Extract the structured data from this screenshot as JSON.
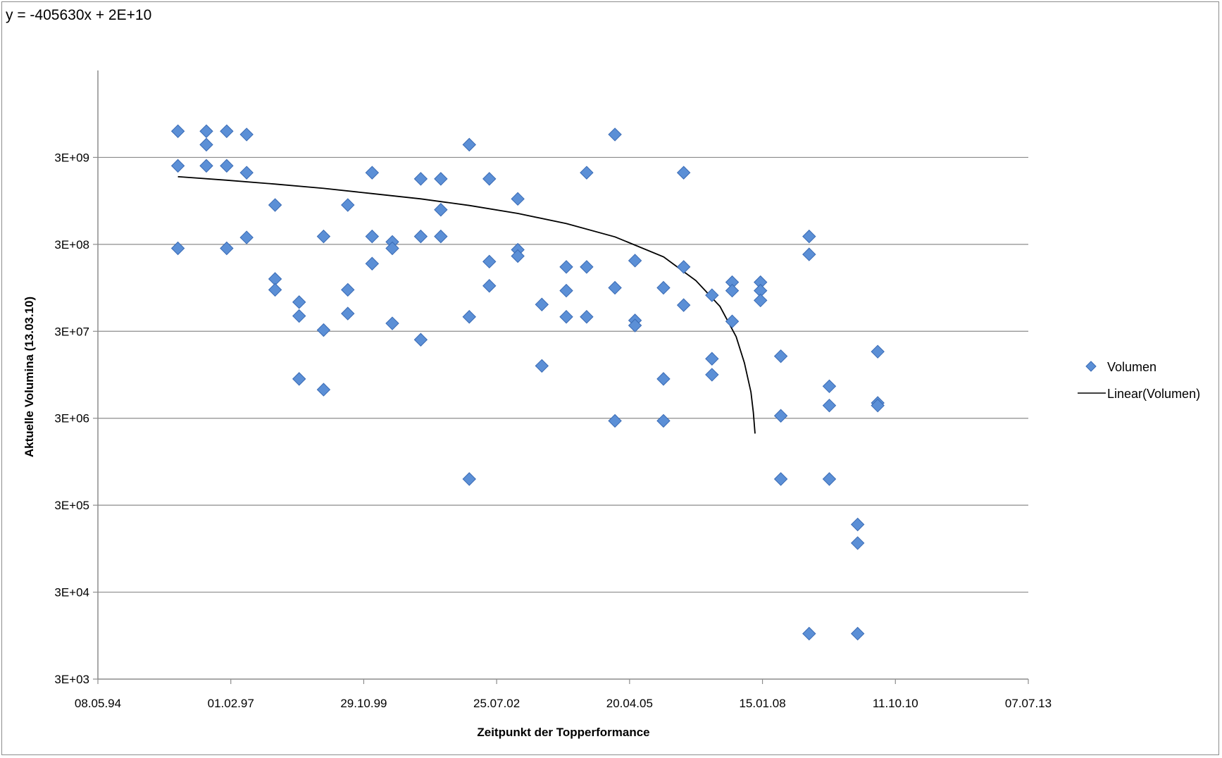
{
  "chart_data": {
    "type": "scatter",
    "title": "",
    "xlabel": "Zeitpunkt der Topperformance",
    "ylabel": "Aktuelle Volumina (13.03.10)",
    "y_scale": "log",
    "ylim": [
      3000,
      30000000000
    ],
    "xlim": [
      "1994-05-08",
      "2013-07-07"
    ],
    "x_ticks": [
      "08.05.94",
      "01.02.97",
      "29.10.99",
      "25.07.02",
      "20.04.05",
      "15.01.08",
      "11.10.10",
      "07.07.13"
    ],
    "y_ticks": [
      "3E+03",
      "3E+04",
      "3E+05",
      "3E+06",
      "3E+07",
      "3E+08",
      "3E+09"
    ],
    "grid": "horizontal major gridlines",
    "legend_position": "right",
    "annotations": [
      "y = -405630x + 2E+10"
    ],
    "colors": {
      "marker": "#5b8fd6",
      "marker_edge": "#3a6bb5",
      "trendline": "#000000",
      "grid": "#8c8c8c"
    },
    "series": [
      {
        "name": "Volumen",
        "marker": "diamond",
        "points": [
          [
            "1995-12-31",
            6000000000
          ],
          [
            "1995-12-31",
            2400000000
          ],
          [
            "1995-12-31",
            270000000
          ],
          [
            "1996-08-01",
            6000000000
          ],
          [
            "1996-08-01",
            4200000000
          ],
          [
            "1996-08-01",
            2400000000
          ],
          [
            "1997-01-01",
            6000000000
          ],
          [
            "1997-01-01",
            2400000000
          ],
          [
            "1997-01-01",
            270000000
          ],
          [
            "1997-05-31",
            5500000000
          ],
          [
            "1997-05-31",
            2000000000
          ],
          [
            "1997-05-31",
            360000000
          ],
          [
            "1997-12-31",
            850000000
          ],
          [
            "1997-12-31",
            120000000
          ],
          [
            "1997-12-31",
            90000000
          ],
          [
            "1998-06-30",
            65000000
          ],
          [
            "1998-06-30",
            45000000
          ],
          [
            "1998-06-30",
            8500000
          ],
          [
            "1998-12-31",
            370000000
          ],
          [
            "1998-12-31",
            31000000
          ],
          [
            "1998-12-31",
            6400000
          ],
          [
            "1999-07-01",
            850000000
          ],
          [
            "1999-07-01",
            90000000
          ],
          [
            "1999-07-01",
            48000000
          ],
          [
            "1999-12-31",
            2000000000
          ],
          [
            "1999-12-31",
            370000000
          ],
          [
            "1999-12-31",
            180000000
          ],
          [
            "2000-05-31",
            320000000
          ],
          [
            "2000-05-31",
            270000000
          ],
          [
            "2000-05-31",
            37000000
          ],
          [
            "2000-12-31",
            1700000000
          ],
          [
            "2000-12-31",
            370000000
          ],
          [
            "2000-12-31",
            24000000
          ],
          [
            "2001-05-31",
            1700000000
          ],
          [
            "2001-05-31",
            750000000
          ],
          [
            "2001-05-31",
            370000000
          ],
          [
            "2001-12-31",
            4200000000
          ],
          [
            "2001-12-31",
            44000000
          ],
          [
            "2001-12-31",
            600000
          ],
          [
            "2002-05-31",
            1700000000
          ],
          [
            "2002-05-31",
            190000000
          ],
          [
            "2002-05-31",
            100000000
          ],
          [
            "2002-12-31",
            1000000000
          ],
          [
            "2002-12-31",
            260000000
          ],
          [
            "2002-12-31",
            220000000
          ],
          [
            "2003-06-30",
            61000000
          ],
          [
            "2003-06-30",
            12000000
          ],
          [
            "2003-12-31",
            165000000
          ],
          [
            "2003-12-31",
            88000000
          ],
          [
            "2003-12-31",
            44000000
          ],
          [
            "2004-06-01",
            2000000000
          ],
          [
            "2004-06-01",
            165000000
          ],
          [
            "2004-06-01",
            44000000
          ],
          [
            "2004-12-31",
            5500000000
          ],
          [
            "2004-12-31",
            95000000
          ],
          [
            "2004-12-31",
            2800000
          ],
          [
            "2005-05-31",
            195000000
          ],
          [
            "2005-05-31",
            40000000
          ],
          [
            "2005-05-31",
            35000000
          ],
          [
            "2005-12-31",
            95000000
          ],
          [
            "2005-12-31",
            8500000
          ],
          [
            "2005-12-31",
            2800000
          ],
          [
            "2006-06-01",
            2000000000
          ],
          [
            "2006-06-01",
            165000000
          ],
          [
            "2006-06-01",
            60000000
          ],
          [
            "2006-12-31",
            78000000
          ],
          [
            "2006-12-31",
            14500000
          ],
          [
            "2006-12-31",
            9500000
          ],
          [
            "2007-06-01",
            110000000
          ],
          [
            "2007-06-01",
            88000000
          ],
          [
            "2007-06-01",
            39000000
          ],
          [
            "2007-12-31",
            110000000
          ],
          [
            "2007-12-31",
            88000000
          ],
          [
            "2007-12-31",
            68000000
          ],
          [
            "2008-06-01",
            15500000
          ],
          [
            "2008-06-01",
            3200000
          ],
          [
            "2008-06-01",
            600000
          ],
          [
            "2008-12-31",
            370000000
          ],
          [
            "2008-12-31",
            230000000
          ],
          [
            "2008-12-31",
            10000
          ],
          [
            "2009-06-01",
            7000000
          ],
          [
            "2009-06-01",
            4200000
          ],
          [
            "2009-06-01",
            600000
          ],
          [
            "2009-12-31",
            180000
          ],
          [
            "2009-12-31",
            110000
          ],
          [
            "2009-12-31",
            10000
          ],
          [
            "2010-05-31",
            17500000
          ],
          [
            "2010-05-31",
            4500000
          ],
          [
            "2010-05-31",
            4200000
          ]
        ]
      },
      {
        "name": "Linear(Volumen)",
        "type": "line",
        "points": [
          [
            "1995-12-31",
            1800000000
          ],
          [
            "1997-01-01",
            1640000000
          ],
          [
            "1998-01-01",
            1480000000
          ],
          [
            "1999-01-01",
            1320000000
          ],
          [
            "2000-01-01",
            1150000000
          ],
          [
            "2001-01-01",
            1000000000
          ],
          [
            "2002-01-01",
            840000000
          ],
          [
            "2003-01-01",
            680000000
          ],
          [
            "2004-01-01",
            520000000
          ],
          [
            "2005-01-01",
            365000000
          ],
          [
            "2006-01-01",
            215000000
          ],
          [
            "2006-09-01",
            115000000
          ],
          [
            "2007-03-01",
            58000000
          ],
          [
            "2007-07-01",
            26000000
          ],
          [
            "2007-09-01",
            13000000
          ],
          [
            "2007-10-20",
            6000000
          ],
          [
            "2007-11-07",
            3500000
          ],
          [
            "2007-11-20",
            2000000
          ]
        ]
      }
    ]
  }
}
